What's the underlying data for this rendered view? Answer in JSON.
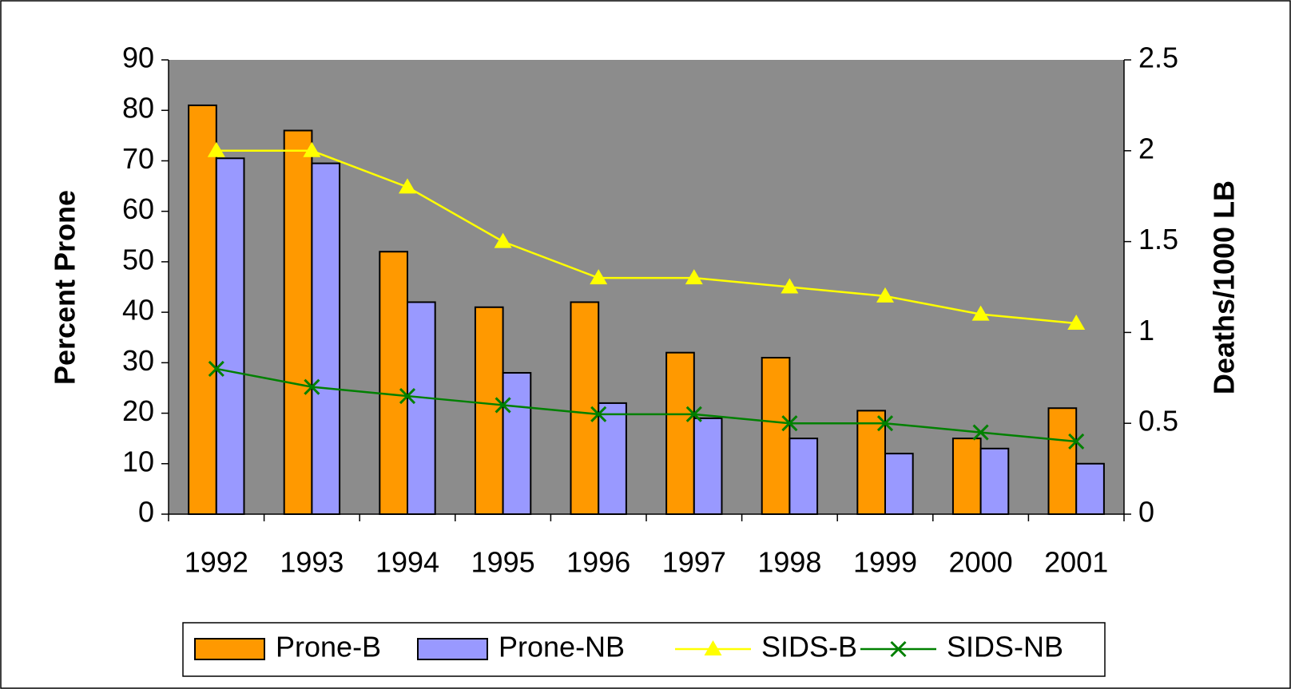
{
  "chart_data": {
    "type": "bar",
    "y_label": "Percent Prone",
    "y2_label": "Deaths/1000 LB",
    "categories": [
      "1992",
      "1993",
      "1994",
      "1995",
      "1996",
      "1997",
      "1998",
      "1999",
      "2000",
      "2001"
    ],
    "series": [
      {
        "name": "Prone-B",
        "color": "#ff9900",
        "values": [
          81,
          76,
          52,
          41,
          42,
          32,
          31,
          20.5,
          15,
          21
        ]
      },
      {
        "name": "Prone-NB",
        "color": "#9999ff",
        "values": [
          70.5,
          69.5,
          42,
          28,
          22,
          19,
          15,
          12,
          13,
          10
        ]
      },
      {
        "name": "SIDS-B",
        "color": "#ffff00",
        "axis": "y2",
        "marker": "triangle",
        "values": [
          2,
          2,
          1.8,
          1.5,
          1.3,
          1.3,
          1.25,
          1.2,
          1.1,
          1.05
        ]
      },
      {
        "name": "SIDS-NB",
        "color": "#008000",
        "axis": "y2",
        "marker": "x",
        "values": [
          0.8,
          0.7,
          0.65,
          0.6,
          0.55,
          0.55,
          0.5,
          0.5,
          0.45,
          0.4
        ]
      }
    ],
    "ylim": [
      0,
      90
    ],
    "yticks": [
      0,
      10,
      20,
      30,
      40,
      50,
      60,
      70,
      80,
      90
    ],
    "y2lim": [
      0,
      2.5
    ],
    "y2ticks": [
      0,
      0.5,
      1,
      1.5,
      2,
      2.5
    ],
    "plot_background": "#8c8c8c",
    "grid": false,
    "legend": "bottom"
  }
}
